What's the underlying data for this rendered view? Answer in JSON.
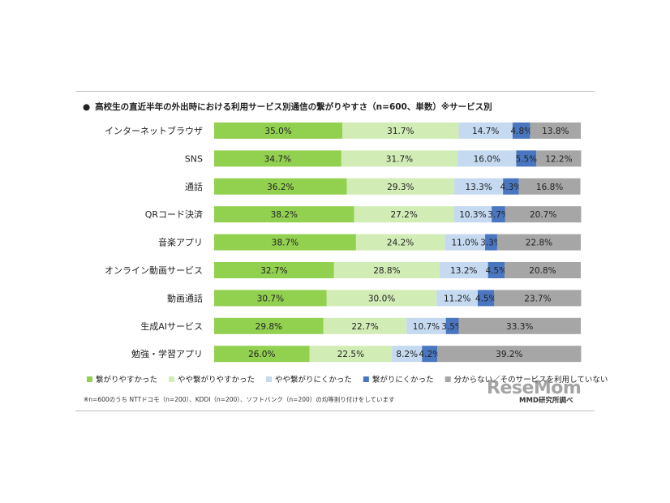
{
  "title": "高校生の直近半年の外出時における利用サービス別通信の繋がりやすさ（n=600、単数）※サービス別",
  "title_bullet": "●",
  "note": "※n=600のうち NTTドコモ（n=200）、KDDI（n=200）、ソフトバンク（n=200）の均等割り付けをしています",
  "source": "MMD研究所調べ",
  "logo": "ReseMom",
  "chart_data": {
    "type": "bar",
    "orientation": "horizontal",
    "stacked": true,
    "unit": "%",
    "xlim": [
      0,
      100
    ],
    "grid": false,
    "legend_position": "bottom",
    "categories": [
      "インターネットブラウザ",
      "SNS",
      "通話",
      "QRコード決済",
      "音楽アプリ",
      "オンライン動画サービス",
      "動画通話",
      "生成AIサービス",
      "勉強・学習アプリ"
    ],
    "series": [
      {
        "name": "繋がりやすかった",
        "color": "#92d050",
        "values": [
          35.0,
          34.7,
          36.2,
          38.2,
          38.7,
          32.7,
          30.7,
          29.8,
          26.0
        ],
        "labels": [
          "35.0%",
          "34.7%",
          "36.2%",
          "38.2%",
          "38.7%",
          "32.7%",
          "30.7%",
          "29.8%",
          "26.0%"
        ]
      },
      {
        "name": "やや繋がりやすかった",
        "color": "#d2ecb6",
        "values": [
          31.7,
          31.7,
          29.3,
          27.2,
          24.2,
          28.8,
          30.0,
          22.7,
          22.5
        ],
        "labels": [
          "31.7%",
          "31.7%",
          "29.3%",
          "27.2%",
          "24.2%",
          "28.8%",
          "30.0%",
          "22.7%",
          "22.5%"
        ]
      },
      {
        "name": "やや繋がりにくかった",
        "color": "#c5d9f0",
        "values": [
          14.7,
          16.0,
          13.3,
          10.3,
          11.0,
          13.2,
          11.2,
          10.7,
          8.2
        ],
        "labels": [
          "14.7%",
          "16.0%",
          "13.3%",
          "10.3%",
          "11.0%",
          "13.2%",
          "11.2%",
          "10.7%",
          "8.2%"
        ]
      },
      {
        "name": "繋がりにくかった",
        "color": "#4a76c0",
        "values": [
          4.8,
          5.5,
          4.3,
          3.7,
          3.3,
          4.5,
          4.5,
          3.5,
          4.2
        ],
        "labels": [
          "4.8%",
          "5.5%",
          "4.3%",
          "3.7%",
          "3.3%",
          "4.5%",
          "4.5%",
          "3.5%",
          "4.2%"
        ]
      },
      {
        "name": "分からない／そのサービスを利用していない",
        "color": "#a6a6a6",
        "values": [
          13.8,
          12.2,
          16.8,
          20.7,
          22.8,
          20.8,
          23.7,
          33.3,
          39.2
        ],
        "labels": [
          "13.8%",
          "12.2%",
          "16.8%",
          "20.7%",
          "22.8%",
          "20.8%",
          "23.7%",
          "33.3%",
          "39.2%"
        ]
      }
    ]
  }
}
